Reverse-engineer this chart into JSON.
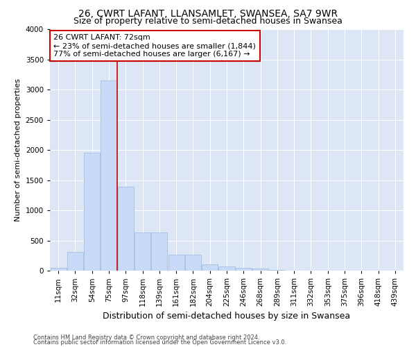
{
  "title": "26, CWRT LAFANT, LLANSAMLET, SWANSEA, SA7 9WR",
  "subtitle": "Size of property relative to semi-detached houses in Swansea",
  "xlabel": "Distribution of semi-detached houses by size in Swansea",
  "ylabel": "Number of semi-detached properties",
  "footer_line1": "Contains HM Land Registry data © Crown copyright and database right 2024.",
  "footer_line2": "Contains public sector information licensed under the Open Government Licence v3.0.",
  "categories": [
    "11sqm",
    "32sqm",
    "54sqm",
    "75sqm",
    "97sqm",
    "118sqm",
    "139sqm",
    "161sqm",
    "182sqm",
    "204sqm",
    "225sqm",
    "246sqm",
    "268sqm",
    "289sqm",
    "311sqm",
    "332sqm",
    "353sqm",
    "375sqm",
    "396sqm",
    "418sqm",
    "439sqm"
  ],
  "values": [
    50,
    310,
    1960,
    3150,
    1390,
    630,
    630,
    270,
    260,
    100,
    70,
    50,
    40,
    10,
    5,
    3,
    2,
    1,
    1,
    1,
    1
  ],
  "bar_color": "#c9daf8",
  "bar_edge_color": "#a4bfe0",
  "vline_x_index": 3.5,
  "annotation_title": "26 CWRT LAFANT: 72sqm",
  "annotation_smaller": "← 23% of semi-detached houses are smaller (1,844)",
  "annotation_larger": "77% of semi-detached houses are larger (6,167) →",
  "annotation_box_facecolor": "#ffffff",
  "annotation_box_edgecolor": "#cc0000",
  "vline_color": "#cc0000",
  "ylim": [
    0,
    4000
  ],
  "yticks": [
    0,
    500,
    1000,
    1500,
    2000,
    2500,
    3000,
    3500,
    4000
  ],
  "bg_color": "#dce6f5",
  "title_fontsize": 10,
  "subtitle_fontsize": 9,
  "tick_fontsize": 7.5,
  "ylabel_fontsize": 8,
  "xlabel_fontsize": 9
}
